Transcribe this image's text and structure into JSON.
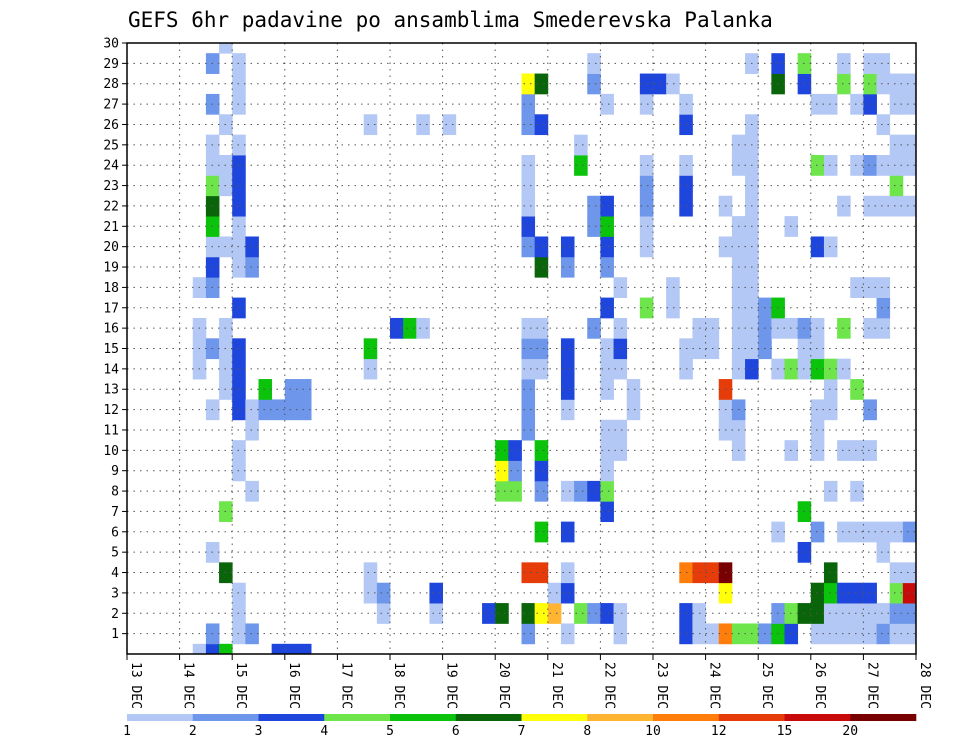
{
  "chart_data": {
    "type": "heatmap",
    "title": "GEFS 6hr padavine po ansamblima Smederevska Palanka",
    "x_tick_labels": [
      "13 DEC",
      "14 DEC",
      "15 DEC",
      "16 DEC",
      "17 DEC",
      "18 DEC",
      "19 DEC",
      "20 DEC",
      "21 DEC",
      "22 DEC",
      "23 DEC",
      "24 DEC",
      "25 DEC",
      "26 DEC",
      "27 DEC",
      "28 DEC"
    ],
    "y_tick_labels": [
      "1",
      "2",
      "3",
      "4",
      "5",
      "6",
      "7",
      "8",
      "9",
      "10",
      "11",
      "12",
      "13",
      "14",
      "15",
      "16",
      "17",
      "18",
      "19",
      "20",
      "21",
      "22",
      "23",
      "24",
      "25",
      "26",
      "27",
      "28",
      "29",
      "30"
    ],
    "x_range_steps": [
      0,
      60
    ],
    "y_range_members": [
      0,
      30
    ],
    "grid": true,
    "colorbar": {
      "tick_labels": [
        "1",
        "2",
        "3",
        "4",
        "5",
        "6",
        "7",
        "8",
        "10",
        "12",
        "15",
        "20"
      ],
      "colors": [
        "#b4c8f5",
        "#6e96eb",
        "#1e46dc",
        "#6ee64b",
        "#0ac30a",
        "#0a640a",
        "#ffff0a",
        "#ffb432",
        "#ff7d0a",
        "#e63c0a",
        "#c80a0a",
        "#780000"
      ]
    },
    "cells": [
      [
        5,
        0,
        1
      ],
      [
        5,
        14,
        1
      ],
      [
        5,
        15,
        1
      ],
      [
        5,
        16,
        1
      ],
      [
        5,
        18,
        1
      ],
      [
        6,
        0,
        3
      ],
      [
        6,
        1,
        2
      ],
      [
        6,
        5,
        1
      ],
      [
        6,
        12,
        1
      ],
      [
        6,
        15,
        2
      ],
      [
        6,
        18,
        2
      ],
      [
        6,
        19,
        3
      ],
      [
        6,
        20,
        1
      ],
      [
        6,
        21,
        5
      ],
      [
        6,
        22,
        6
      ],
      [
        6,
        23,
        4
      ],
      [
        6,
        24,
        1
      ],
      [
        6,
        25,
        1
      ],
      [
        6,
        27,
        2
      ],
      [
        6,
        29,
        2
      ],
      [
        7,
        0,
        5
      ],
      [
        7,
        4,
        6
      ],
      [
        7,
        7,
        4
      ],
      [
        7,
        13,
        1
      ],
      [
        7,
        14,
        1
      ],
      [
        7,
        15,
        1
      ],
      [
        7,
        16,
        1
      ],
      [
        7,
        20,
        1
      ],
      [
        7,
        23,
        1
      ],
      [
        7,
        24,
        1
      ],
      [
        7,
        26,
        1
      ],
      [
        7,
        30,
        1
      ],
      [
        8,
        1,
        1
      ],
      [
        8,
        2,
        1
      ],
      [
        8,
        3,
        1
      ],
      [
        8,
        9,
        1
      ],
      [
        8,
        10,
        1
      ],
      [
        8,
        12,
        3
      ],
      [
        8,
        13,
        3
      ],
      [
        8,
        14,
        3
      ],
      [
        8,
        15,
        3
      ],
      [
        8,
        17,
        3
      ],
      [
        8,
        19,
        1
      ],
      [
        8,
        20,
        1
      ],
      [
        8,
        21,
        1
      ],
      [
        8,
        22,
        3
      ],
      [
        8,
        23,
        3
      ],
      [
        8,
        24,
        3
      ],
      [
        8,
        25,
        1
      ],
      [
        8,
        27,
        1
      ],
      [
        8,
        28,
        1
      ],
      [
        8,
        29,
        1
      ],
      [
        9,
        1,
        2
      ],
      [
        9,
        8,
        1
      ],
      [
        9,
        11,
        1
      ],
      [
        9,
        12,
        1
      ],
      [
        9,
        19,
        2
      ],
      [
        9,
        20,
        3
      ],
      [
        10,
        12,
        2
      ],
      [
        10,
        13,
        5
      ],
      [
        11,
        0,
        3
      ],
      [
        11,
        12,
        2
      ],
      [
        12,
        0,
        3
      ],
      [
        12,
        12,
        2
      ],
      [
        12,
        13,
        2
      ],
      [
        13,
        0,
        3
      ],
      [
        13,
        12,
        2
      ],
      [
        13,
        13,
        2
      ],
      [
        18,
        3,
        1
      ],
      [
        18,
        4,
        1
      ],
      [
        18,
        14,
        1
      ],
      [
        18,
        15,
        5
      ],
      [
        18,
        26,
        1
      ],
      [
        19,
        2,
        1
      ],
      [
        19,
        3,
        2
      ],
      [
        20,
        16,
        3
      ],
      [
        21,
        16,
        5
      ],
      [
        22,
        16,
        1
      ],
      [
        22,
        26,
        1
      ],
      [
        23,
        2,
        1
      ],
      [
        23,
        3,
        3
      ],
      [
        24,
        26,
        1
      ],
      [
        27,
        2,
        3
      ],
      [
        28,
        2,
        6
      ],
      [
        28,
        8,
        4
      ],
      [
        28,
        9,
        7
      ],
      [
        28,
        10,
        5
      ],
      [
        29,
        8,
        4
      ],
      [
        29,
        9,
        2
      ],
      [
        29,
        10,
        3
      ],
      [
        30,
        1,
        2
      ],
      [
        30,
        2,
        6
      ],
      [
        30,
        4,
        10
      ],
      [
        30,
        11,
        2
      ],
      [
        30,
        12,
        2
      ],
      [
        30,
        13,
        2
      ],
      [
        30,
        14,
        1
      ],
      [
        30,
        15,
        2
      ],
      [
        30,
        16,
        1
      ],
      [
        30,
        20,
        2
      ],
      [
        30,
        21,
        3
      ],
      [
        30,
        22,
        1
      ],
      [
        30,
        23,
        1
      ],
      [
        30,
        24,
        1
      ],
      [
        30,
        26,
        2
      ],
      [
        30,
        27,
        2
      ],
      [
        30,
        28,
        7
      ],
      [
        31,
        2,
        7
      ],
      [
        31,
        4,
        10
      ],
      [
        31,
        6,
        5
      ],
      [
        31,
        8,
        2
      ],
      [
        31,
        9,
        3
      ],
      [
        31,
        10,
        5
      ],
      [
        31,
        14,
        1
      ],
      [
        31,
        15,
        2
      ],
      [
        31,
        16,
        1
      ],
      [
        31,
        19,
        6
      ],
      [
        31,
        20,
        3
      ],
      [
        31,
        26,
        3
      ],
      [
        31,
        28,
        6
      ],
      [
        32,
        2,
        8
      ],
      [
        32,
        3,
        1
      ],
      [
        33,
        1,
        1
      ],
      [
        33,
        3,
        3
      ],
      [
        33,
        4,
        1
      ],
      [
        33,
        6,
        3
      ],
      [
        33,
        8,
        1
      ],
      [
        33,
        12,
        1
      ],
      [
        33,
        13,
        3
      ],
      [
        33,
        14,
        3
      ],
      [
        33,
        15,
        3
      ],
      [
        33,
        19,
        2
      ],
      [
        33,
        20,
        3
      ],
      [
        34,
        2,
        4
      ],
      [
        34,
        8,
        2
      ],
      [
        34,
        24,
        5
      ],
      [
        34,
        25,
        1
      ],
      [
        35,
        2,
        2
      ],
      [
        35,
        8,
        3
      ],
      [
        35,
        16,
        2
      ],
      [
        35,
        21,
        2
      ],
      [
        35,
        22,
        2
      ],
      [
        35,
        28,
        2
      ],
      [
        35,
        29,
        1
      ],
      [
        36,
        2,
        3
      ],
      [
        36,
        7,
        3
      ],
      [
        36,
        8,
        4
      ],
      [
        36,
        9,
        1
      ],
      [
        36,
        10,
        1
      ],
      [
        36,
        11,
        1
      ],
      [
        36,
        13,
        1
      ],
      [
        36,
        14,
        1
      ],
      [
        36,
        15,
        1
      ],
      [
        36,
        17,
        3
      ],
      [
        36,
        19,
        2
      ],
      [
        36,
        20,
        3
      ],
      [
        36,
        21,
        5
      ],
      [
        36,
        22,
        3
      ],
      [
        36,
        27,
        1
      ],
      [
        37,
        1,
        1
      ],
      [
        37,
        2,
        1
      ],
      [
        37,
        10,
        1
      ],
      [
        37,
        11,
        1
      ],
      [
        37,
        14,
        1
      ],
      [
        37,
        15,
        3
      ],
      [
        37,
        16,
        1
      ],
      [
        37,
        18,
        1
      ],
      [
        38,
        12,
        1
      ],
      [
        38,
        13,
        1
      ],
      [
        39,
        17,
        4
      ],
      [
        39,
        20,
        1
      ],
      [
        39,
        21,
        1
      ],
      [
        39,
        22,
        2
      ],
      [
        39,
        23,
        2
      ],
      [
        39,
        24,
        1
      ],
      [
        39,
        27,
        1
      ],
      [
        39,
        28,
        3
      ],
      [
        40,
        28,
        3
      ],
      [
        41,
        17,
        1
      ],
      [
        41,
        18,
        1
      ],
      [
        41,
        28,
        1
      ],
      [
        42,
        1,
        3
      ],
      [
        42,
        2,
        3
      ],
      [
        42,
        4,
        9
      ],
      [
        42,
        14,
        1
      ],
      [
        42,
        15,
        1
      ],
      [
        42,
        22,
        3
      ],
      [
        42,
        23,
        3
      ],
      [
        42,
        24,
        1
      ],
      [
        42,
        26,
        3
      ],
      [
        42,
        27,
        1
      ],
      [
        43,
        1,
        1
      ],
      [
        43,
        2,
        1
      ],
      [
        43,
        4,
        10
      ],
      [
        43,
        15,
        1
      ],
      [
        43,
        16,
        1
      ],
      [
        44,
        1,
        1
      ],
      [
        44,
        4,
        10
      ],
      [
        44,
        15,
        1
      ],
      [
        44,
        16,
        1
      ],
      [
        45,
        1,
        9
      ],
      [
        45,
        3,
        7
      ],
      [
        45,
        4,
        12
      ],
      [
        45,
        11,
        1
      ],
      [
        45,
        12,
        1
      ],
      [
        45,
        13,
        10
      ],
      [
        45,
        20,
        1
      ],
      [
        45,
        22,
        1
      ],
      [
        46,
        1,
        4
      ],
      [
        46,
        10,
        1
      ],
      [
        46,
        11,
        1
      ],
      [
        46,
        12,
        2
      ],
      [
        46,
        14,
        1
      ],
      [
        46,
        15,
        1
      ],
      [
        46,
        16,
        1
      ],
      [
        46,
        17,
        1
      ],
      [
        46,
        18,
        1
      ],
      [
        46,
        19,
        1
      ],
      [
        46,
        20,
        1
      ],
      [
        46,
        21,
        1
      ],
      [
        46,
        24,
        1
      ],
      [
        46,
        25,
        1
      ],
      [
        47,
        1,
        4
      ],
      [
        47,
        14,
        3
      ],
      [
        47,
        15,
        1
      ],
      [
        47,
        16,
        1
      ],
      [
        47,
        17,
        1
      ],
      [
        47,
        18,
        1
      ],
      [
        47,
        19,
        1
      ],
      [
        47,
        20,
        1
      ],
      [
        47,
        21,
        1
      ],
      [
        47,
        22,
        1
      ],
      [
        47,
        23,
        1
      ],
      [
        47,
        24,
        1
      ],
      [
        47,
        25,
        1
      ],
      [
        47,
        26,
        1
      ],
      [
        47,
        29,
        1
      ],
      [
        48,
        1,
        2
      ],
      [
        48,
        15,
        2
      ],
      [
        48,
        16,
        2
      ],
      [
        48,
        17,
        2
      ],
      [
        49,
        1,
        5
      ],
      [
        49,
        2,
        2
      ],
      [
        49,
        6,
        1
      ],
      [
        49,
        14,
        1
      ],
      [
        49,
        16,
        1
      ],
      [
        49,
        17,
        5
      ],
      [
        49,
        28,
        6
      ],
      [
        49,
        29,
        3
      ],
      [
        50,
        1,
        3
      ],
      [
        50,
        2,
        4
      ],
      [
        50,
        10,
        1
      ],
      [
        50,
        14,
        4
      ],
      [
        50,
        16,
        1
      ],
      [
        50,
        21,
        1
      ],
      [
        51,
        2,
        6
      ],
      [
        51,
        5,
        3
      ],
      [
        51,
        7,
        5
      ],
      [
        51,
        14,
        1
      ],
      [
        51,
        15,
        1
      ],
      [
        51,
        16,
        2
      ],
      [
        51,
        28,
        3
      ],
      [
        51,
        29,
        4
      ],
      [
        52,
        1,
        1
      ],
      [
        52,
        2,
        6
      ],
      [
        52,
        3,
        6
      ],
      [
        52,
        6,
        2
      ],
      [
        52,
        10,
        1
      ],
      [
        52,
        11,
        1
      ],
      [
        52,
        12,
        1
      ],
      [
        52,
        14,
        5
      ],
      [
        52,
        15,
        1
      ],
      [
        52,
        16,
        1
      ],
      [
        52,
        20,
        3
      ],
      [
        52,
        24,
        4
      ],
      [
        52,
        27,
        1
      ],
      [
        53,
        1,
        1
      ],
      [
        53,
        2,
        1
      ],
      [
        53,
        3,
        5
      ],
      [
        53,
        4,
        6
      ],
      [
        53,
        8,
        1
      ],
      [
        53,
        12,
        1
      ],
      [
        53,
        13,
        1
      ],
      [
        53,
        14,
        4
      ],
      [
        53,
        20,
        1
      ],
      [
        53,
        24,
        1
      ],
      [
        53,
        27,
        1
      ],
      [
        54,
        1,
        1
      ],
      [
        54,
        2,
        1
      ],
      [
        54,
        3,
        3
      ],
      [
        54,
        6,
        1
      ],
      [
        54,
        10,
        1
      ],
      [
        54,
        14,
        1
      ],
      [
        54,
        16,
        4
      ],
      [
        54,
        22,
        1
      ],
      [
        54,
        28,
        4
      ],
      [
        54,
        29,
        1
      ],
      [
        55,
        1,
        1
      ],
      [
        55,
        2,
        1
      ],
      [
        55,
        3,
        3
      ],
      [
        55,
        6,
        1
      ],
      [
        55,
        8,
        1
      ],
      [
        55,
        10,
        1
      ],
      [
        55,
        13,
        4
      ],
      [
        55,
        18,
        1
      ],
      [
        55,
        24,
        1
      ],
      [
        55,
        27,
        1
      ],
      [
        56,
        1,
        1
      ],
      [
        56,
        2,
        1
      ],
      [
        56,
        3,
        3
      ],
      [
        56,
        6,
        1
      ],
      [
        56,
        10,
        1
      ],
      [
        56,
        12,
        2
      ],
      [
        56,
        16,
        1
      ],
      [
        56,
        18,
        1
      ],
      [
        56,
        22,
        1
      ],
      [
        56,
        24,
        2
      ],
      [
        56,
        27,
        3
      ],
      [
        56,
        28,
        4
      ],
      [
        56,
        29,
        1
      ],
      [
        57,
        1,
        2
      ],
      [
        57,
        2,
        1
      ],
      [
        57,
        5,
        1
      ],
      [
        57,
        6,
        1
      ],
      [
        57,
        16,
        1
      ],
      [
        57,
        17,
        2
      ],
      [
        57,
        18,
        1
      ],
      [
        57,
        22,
        1
      ],
      [
        57,
        24,
        1
      ],
      [
        57,
        26,
        1
      ],
      [
        57,
        28,
        1
      ],
      [
        57,
        29,
        1
      ],
      [
        58,
        1,
        1
      ],
      [
        58,
        2,
        2
      ],
      [
        58,
        3,
        4
      ],
      [
        58,
        4,
        1
      ],
      [
        58,
        6,
        1
      ],
      [
        58,
        22,
        1
      ],
      [
        58,
        23,
        4
      ],
      [
        58,
        24,
        1
      ],
      [
        58,
        25,
        1
      ],
      [
        58,
        27,
        1
      ],
      [
        58,
        28,
        1
      ],
      [
        59,
        1,
        1
      ],
      [
        59,
        2,
        2
      ],
      [
        59,
        3,
        11
      ],
      [
        59,
        4,
        1
      ],
      [
        59,
        6,
        2
      ],
      [
        59,
        22,
        1
      ],
      [
        59,
        24,
        1
      ],
      [
        59,
        25,
        1
      ],
      [
        59,
        27,
        1
      ],
      [
        59,
        28,
        1
      ]
    ]
  }
}
